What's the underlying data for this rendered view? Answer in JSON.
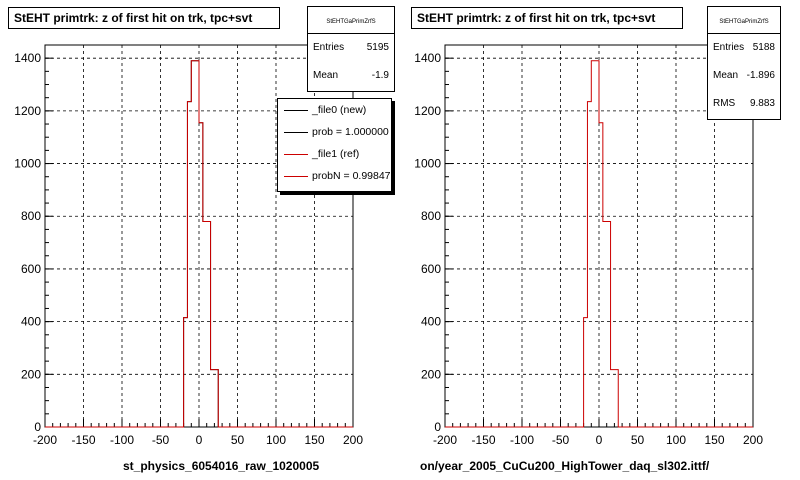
{
  "chart_data": [
    {
      "type": "histogram",
      "title": "StEHT primtrk: z of first hit on trk, tpc+svt",
      "xlim": [
        -200,
        200
      ],
      "ylim": [
        0,
        1450
      ],
      "x_ticks": [
        "-200",
        "-150",
        "-100",
        "-50",
        "0",
        "50",
        "100",
        "150",
        "200"
      ],
      "y_ticks": [
        "0",
        "200",
        "400",
        "600",
        "800",
        "1000",
        "1200",
        "1400"
      ],
      "grid": true,
      "bin_edges": [
        -25,
        -20,
        -15,
        -10,
        -5,
        0,
        5,
        10,
        15,
        20,
        25,
        30
      ],
      "series": [
        {
          "name": "_file0 (new)",
          "color": "#000000",
          "values": [
            0,
            415,
            1235,
            1390,
            1390,
            1155,
            780,
            780,
            218,
            218,
            0
          ]
        },
        {
          "name": "_file1 (ref)",
          "color": "#cc0000",
          "values": [
            0,
            415,
            1235,
            1390,
            1390,
            1155,
            780,
            780,
            218,
            218,
            0
          ]
        }
      ],
      "stats": {
        "header": "StEHTGaPrimZrfS",
        "entries_label": "Entries",
        "entries": "5195",
        "mean_label": "Mean",
        "mean": "-1.9"
      },
      "legend": {
        "position": "top-right",
        "entries": [
          "_file0 (new)",
          "prob = 1.000000",
          "_file1 (ref)",
          "probN = 0.99847"
        ]
      },
      "footer": "st_physics_6054016_raw_1020005"
    },
    {
      "type": "histogram",
      "title": "StEHT primtrk: z of first hit on trk, tpc+svt",
      "xlim": [
        -200,
        200
      ],
      "ylim": [
        0,
        1450
      ],
      "x_ticks": [
        "-200",
        "-150",
        "-100",
        "-50",
        "0",
        "50",
        "100",
        "150",
        "200"
      ],
      "y_ticks": [
        "0",
        "200",
        "400",
        "600",
        "800",
        "1000",
        "1200",
        "1400"
      ],
      "grid": true,
      "bin_edges": [
        -25,
        -20,
        -15,
        -10,
        -5,
        0,
        5,
        10,
        15,
        20,
        25,
        30
      ],
      "series": [
        {
          "name": "_file1 (ref)",
          "color": "#cc0000",
          "values": [
            0,
            415,
            1235,
            1390,
            1390,
            1155,
            780,
            780,
            218,
            218,
            0
          ]
        }
      ],
      "stats": {
        "header": "StEHTGaPrimZrfS",
        "entries_label": "Entries",
        "entries": "5188",
        "mean_label": "Mean",
        "mean": "-1.896",
        "rms_label": "RMS",
        "rms": "9.883"
      },
      "footer": "on/year_2005_CuCu200_HighTower_daq_sl302.ittf/"
    }
  ]
}
